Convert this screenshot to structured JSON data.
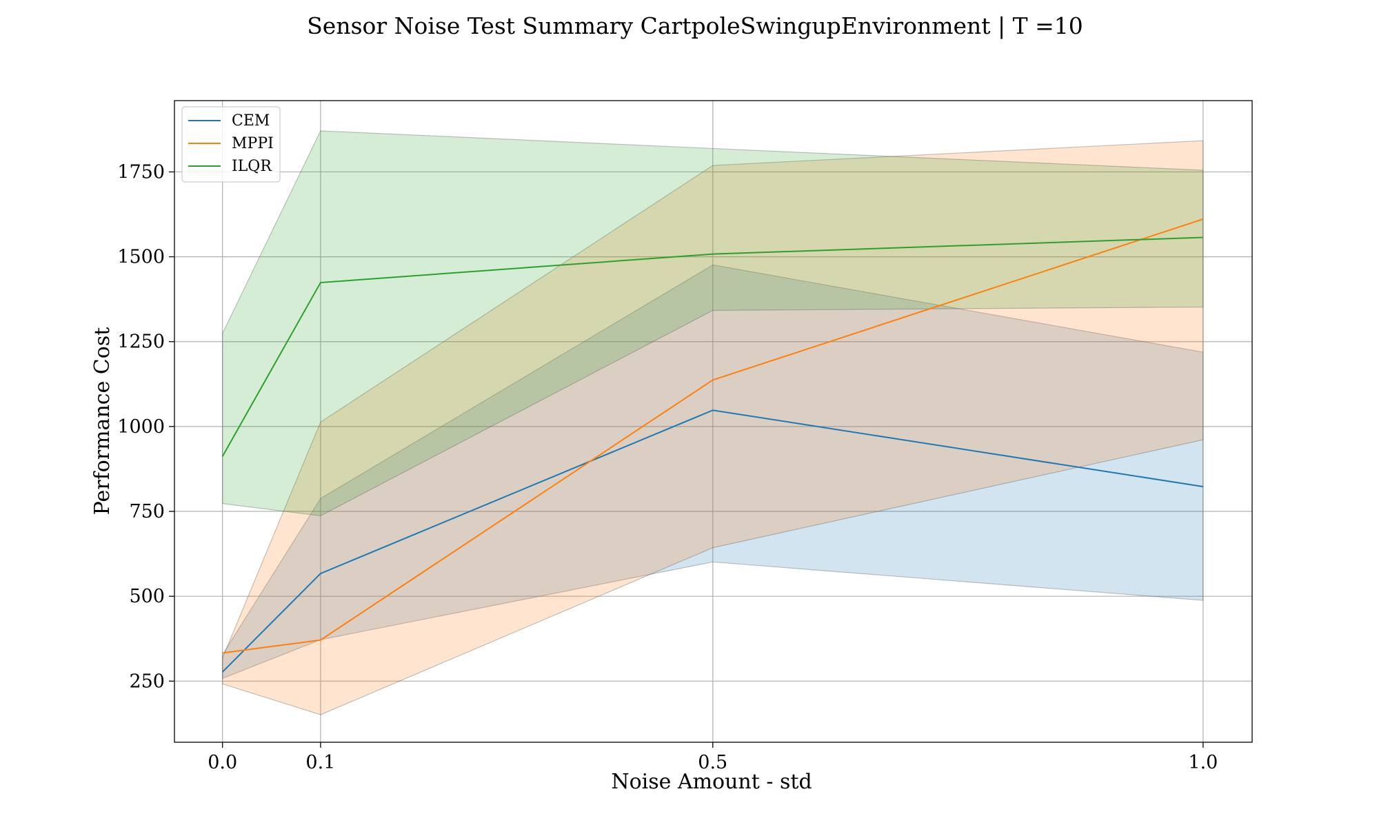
{
  "chart_data": {
    "type": "line",
    "title": "Sensor Noise Test Summary CartpoleSwingupEnvironment | T =10",
    "xlabel": "Noise Amount - std",
    "ylabel": "Performance Cost",
    "x": [
      0.0,
      0.1,
      0.5,
      1.0
    ],
    "x_tick_labels": [
      "0.0",
      "0.1",
      "0.5",
      "1.0"
    ],
    "y_ticks": [
      250,
      500,
      750,
      1000,
      1250,
      1500,
      1750
    ],
    "y_tick_labels": [
      "250",
      "500",
      "750",
      "1000",
      "1250",
      "1500",
      "1750"
    ],
    "xlim": [
      -0.049,
      1.05
    ],
    "ylim": [
      70,
      1960
    ],
    "grid": true,
    "legend_position": "upper-left",
    "series": [
      {
        "name": "CEM",
        "color": "#1f77b4",
        "values": [
          277,
          567,
          1048,
          823
        ],
        "lower": [
          258,
          372,
          601,
          488
        ],
        "upper": [
          328,
          788,
          1476,
          1219
        ]
      },
      {
        "name": "MPPI",
        "color": "#ff7f0e",
        "values": [
          333,
          371,
          1137,
          1611
        ],
        "lower": [
          242,
          151,
          643,
          961
        ],
        "upper": [
          318,
          1013,
          1769,
          1842
        ]
      },
      {
        "name": "ILQR",
        "color": "#2ca02c",
        "values": [
          912,
          1424,
          1508,
          1557
        ],
        "lower": [
          773,
          737,
          1342,
          1352
        ],
        "upper": [
          1274,
          1871,
          1819,
          1755
        ]
      }
    ]
  }
}
